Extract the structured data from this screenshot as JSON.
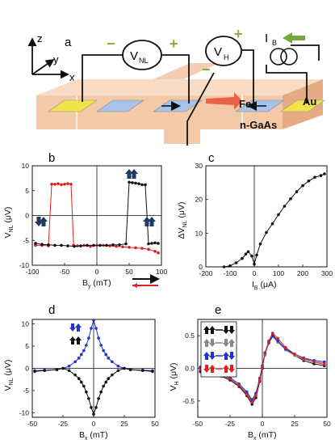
{
  "device": {
    "panel_letter": "a",
    "axes": {
      "z": "z",
      "y": "y",
      "x": "x"
    },
    "meters": {
      "vnl": "V",
      "vnl_sub": "NL",
      "vh": "V",
      "vh_sub": "H"
    },
    "source": {
      "label": "I",
      "label_sub": "B"
    },
    "signs": {
      "minus": "−",
      "plus": "+"
    },
    "labels": {
      "fe": "Fe",
      "gaas": "n-GaAs",
      "au": "Au"
    },
    "colors": {
      "gold": "#f2e24a",
      "blue": "#a9c3e6",
      "arrow_red": "#e8553c",
      "sign_green": "#7fae3a",
      "arrow_green": "#77a83b",
      "gaas_top": "#f6cdb1",
      "gaas_side": "#e9b48f"
    }
  },
  "chart_data": [
    {
      "id": "b",
      "panel_letter": "b",
      "type": "scatter",
      "xlabel": "B",
      "xlabel_sub": "y",
      "xlabel_unit": " (mT)",
      "ylabel": "V",
      "ylabel_sub": "NL",
      "ylabel_unit": " (μV)",
      "xlim": [
        -100,
        100
      ],
      "ylim": [
        -10,
        10
      ],
      "xticks": [
        "-100",
        "-50",
        "0",
        "50",
        "100"
      ],
      "yticks": [
        "-10",
        "-5",
        "0",
        "5",
        "10"
      ],
      "grid": false,
      "series": [
        {
          "color": "#e02020",
          "x": [
            -95,
            -85,
            -75,
            -70,
            -65,
            -60,
            -55,
            -50,
            -45,
            -40,
            -36,
            -30,
            -20,
            -10,
            0,
            10,
            20,
            30,
            40,
            50,
            60,
            70,
            80,
            90,
            95
          ],
          "y": [
            -6,
            -6,
            -6.1,
            6.3,
            6.3,
            6.4,
            6.2,
            6.3,
            6.4,
            6.3,
            -6,
            -6.1,
            -6,
            -6.2,
            -6,
            -6,
            -6.1,
            -6.2,
            -6.3,
            -6.4,
            -6.5,
            -6.6,
            -6.8,
            -7.2,
            -7.5
          ]
        },
        {
          "color": "#111111",
          "x": [
            -95,
            -85,
            -75,
            -65,
            -55,
            -45,
            -35,
            -25,
            -15,
            -5,
            5,
            15,
            25,
            35,
            45,
            50,
            55,
            60,
            65,
            70,
            75,
            80,
            85,
            90,
            95
          ],
          "y": [
            -5.6,
            -5.8,
            -5.9,
            -6,
            -6,
            -6.1,
            -6.2,
            -6.1,
            -6,
            -6,
            -6,
            -6,
            -5.9,
            -5.9,
            -5.7,
            6.7,
            6.6,
            6.5,
            6.4,
            6.2,
            6.2,
            -5.7,
            -5.6,
            -5.5,
            -5.6
          ]
        }
      ],
      "legend": "bottom-right sweep arrows",
      "sweep_colors": [
        "#111111",
        "#e02020"
      ],
      "spin_arrow_color": "#1f3a63"
    },
    {
      "id": "c",
      "panel_letter": "c",
      "type": "line",
      "xlabel": "I",
      "xlabel_sub": "B",
      "xlabel_unit": " (μA)",
      "ylabel": "ΔV",
      "ylabel_sub": "NL",
      "ylabel_unit": " (μV)",
      "xlim": [
        -200,
        300
      ],
      "ylim": [
        0,
        30
      ],
      "xticks": [
        "-200",
        "-100",
        "0",
        "100",
        "200",
        "300"
      ],
      "yticks": [
        "0",
        "10",
        "20",
        "30"
      ],
      "grid": false,
      "series": [
        {
          "color": "#111111",
          "x": [
            -125,
            -100,
            -75,
            -50,
            -35,
            -25,
            -10,
            0,
            10,
            25,
            50,
            75,
            100,
            125,
            150,
            175,
            200,
            225,
            250,
            275,
            290
          ],
          "y": [
            0,
            0.3,
            1.2,
            2.5,
            3.8,
            4.5,
            3.2,
            0.8,
            3.5,
            6.8,
            10.2,
            12.8,
            15.5,
            18,
            20.2,
            22.3,
            24.1,
            25.5,
            26.6,
            27.1,
            27.6
          ]
        }
      ]
    },
    {
      "id": "d",
      "panel_letter": "d",
      "type": "scatter",
      "xlabel": "B",
      "xlabel_sub": "x",
      "xlabel_unit": " (mT)",
      "ylabel": "V",
      "ylabel_sub": "NL",
      "ylabel_unit": " (μV)",
      "xlim": [
        -50,
        50
      ],
      "ylim": [
        -11,
        11
      ],
      "xticks": [
        "-50",
        "-25",
        "0",
        "25",
        "50"
      ],
      "yticks": [
        "-10",
        "-5",
        "0",
        "5",
        "10"
      ],
      "grid": false,
      "series": [
        {
          "color": "#2233cc",
          "x": [
            -48,
            -40,
            -30,
            -25,
            -20,
            -15,
            -12,
            -10,
            -8,
            -6,
            -4,
            -2,
            0,
            2,
            4,
            6,
            8,
            10,
            12,
            15,
            20,
            25,
            30,
            40,
            48
          ],
          "y": [
            -0.5,
            -0.4,
            -0.3,
            0,
            0.5,
            1.5,
            2.3,
            3.1,
            4,
            5.2,
            6.8,
            9,
            10.8,
            9,
            6.8,
            5.2,
            4,
            3.1,
            2.3,
            1.5,
            0.5,
            0,
            -0.3,
            -0.4,
            -0.5
          ]
        },
        {
          "color": "#111111",
          "x": [
            -48,
            -40,
            -30,
            -25,
            -20,
            -15,
            -12,
            -10,
            -8,
            -6,
            -4,
            -2,
            0,
            2,
            4,
            6,
            8,
            10,
            12,
            15,
            20,
            25,
            30,
            40,
            48
          ],
          "y": [
            -0.7,
            -0.5,
            -0.3,
            0,
            -0.5,
            -1.5,
            -2.3,
            -3.1,
            -4,
            -5.3,
            -6.8,
            -8.8,
            -10.3,
            -8.8,
            -6.8,
            -5.3,
            -4,
            -3.1,
            -2.3,
            -1.5,
            -0.5,
            0,
            -0.3,
            -0.5,
            -0.7
          ]
        }
      ],
      "legend": "spin arrows top-left"
    },
    {
      "id": "e",
      "panel_letter": "e",
      "type": "scatter",
      "xlabel": "B",
      "xlabel_sub": "x",
      "xlabel_unit": " (mT)",
      "ylabel": "V",
      "ylabel_sub": "H",
      "ylabel_unit": " (μV)",
      "xlim": [
        -50,
        50
      ],
      "ylim": [
        -0.75,
        0.75
      ],
      "xticks": [
        "-50",
        "-25",
        "0",
        "25",
        "50"
      ],
      "yticks": [
        "-0.5",
        "0.0",
        "0.5"
      ],
      "grid": false,
      "series": [
        {
          "color": "#111111",
          "x": [
            -48,
            -40,
            -32,
            -25,
            -18,
            -12,
            -8,
            -5,
            -2,
            0,
            2,
            5,
            8,
            12,
            18,
            25,
            32,
            40,
            48
          ],
          "y": [
            -0.05,
            -0.08,
            -0.12,
            -0.18,
            -0.28,
            -0.42,
            -0.55,
            -0.45,
            -0.2,
            0,
            0.22,
            0.42,
            0.52,
            0.42,
            0.3,
            0.2,
            0.12,
            0.07,
            0.04
          ]
        },
        {
          "color": "#888888",
          "x": [
            -48,
            -40,
            -32,
            -25,
            -18,
            -12,
            -8,
            -5,
            -2,
            0,
            2,
            5,
            8,
            12,
            18,
            25,
            32,
            40,
            48
          ],
          "y": [
            0,
            -0.04,
            -0.1,
            -0.16,
            -0.26,
            -0.38,
            -0.5,
            -0.4,
            -0.18,
            0.02,
            0.2,
            0.38,
            0.48,
            0.4,
            0.28,
            0.2,
            0.14,
            0.1,
            0.08
          ]
        },
        {
          "color": "#2233cc",
          "x": [
            -48,
            -40,
            -32,
            -25,
            -18,
            -12,
            -8,
            -5,
            -2,
            0,
            2,
            5,
            8,
            12,
            18,
            25,
            32,
            40,
            48
          ],
          "y": [
            0.02,
            -0.03,
            -0.08,
            -0.14,
            -0.24,
            -0.36,
            -0.48,
            -0.38,
            -0.15,
            0.04,
            0.24,
            0.4,
            0.5,
            0.42,
            0.3,
            0.22,
            0.16,
            0.12,
            0.1
          ]
        },
        {
          "color": "#e02020",
          "x": [
            -48,
            -40,
            -32,
            -25,
            -18,
            -12,
            -8,
            -5,
            -2,
            0,
            2,
            5,
            8,
            12,
            18,
            25,
            32,
            40,
            48
          ],
          "y": [
            -0.02,
            -0.06,
            -0.1,
            -0.16,
            -0.26,
            -0.4,
            -0.52,
            -0.42,
            -0.18,
            0.01,
            0.23,
            0.42,
            0.54,
            0.46,
            0.32,
            0.22,
            0.15,
            0.1,
            0.06
          ]
        }
      ],
      "legend": "top-left box",
      "legend_colors": [
        "#111111",
        "#888888",
        "#2233cc",
        "#e02020"
      ]
    }
  ]
}
